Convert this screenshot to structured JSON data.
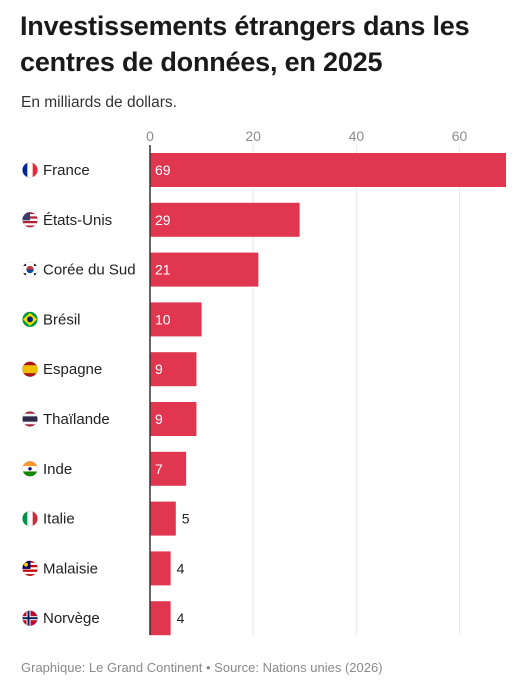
{
  "title": "Investissements étrangers dans les centres de données, en 2025",
  "subtitle": "En milliards de dollars.",
  "source": "Graphique: Le Grand Continent • Source: Nations unies (2026)",
  "chart_data": {
    "type": "bar",
    "orientation": "horizontal",
    "categories": [
      "France",
      "États-Unis",
      "Corée du Sud",
      "Brésil",
      "Espagne",
      "Thaïlande",
      "Inde",
      "Italie",
      "Malaisie",
      "Norvège"
    ],
    "flag_icons": [
      "flag-france-icon",
      "flag-usa-icon",
      "flag-south-korea-icon",
      "flag-brazil-icon",
      "flag-spain-icon",
      "flag-thailand-icon",
      "flag-india-icon",
      "flag-italy-icon",
      "flag-malaysia-icon",
      "flag-norway-icon"
    ],
    "values": [
      69,
      29,
      21,
      10,
      9,
      9,
      7,
      5,
      4,
      4
    ],
    "data_labels": [
      "69",
      "29",
      "21",
      "10",
      "9",
      "9",
      "7",
      "5",
      "4",
      "4"
    ],
    "xticks": [
      0,
      20,
      40,
      60
    ],
    "xtick_labels": [
      "0",
      "20",
      "40",
      "60"
    ],
    "xlim": [
      0,
      69
    ],
    "grid": true,
    "bar_color": "#e0364f"
  }
}
